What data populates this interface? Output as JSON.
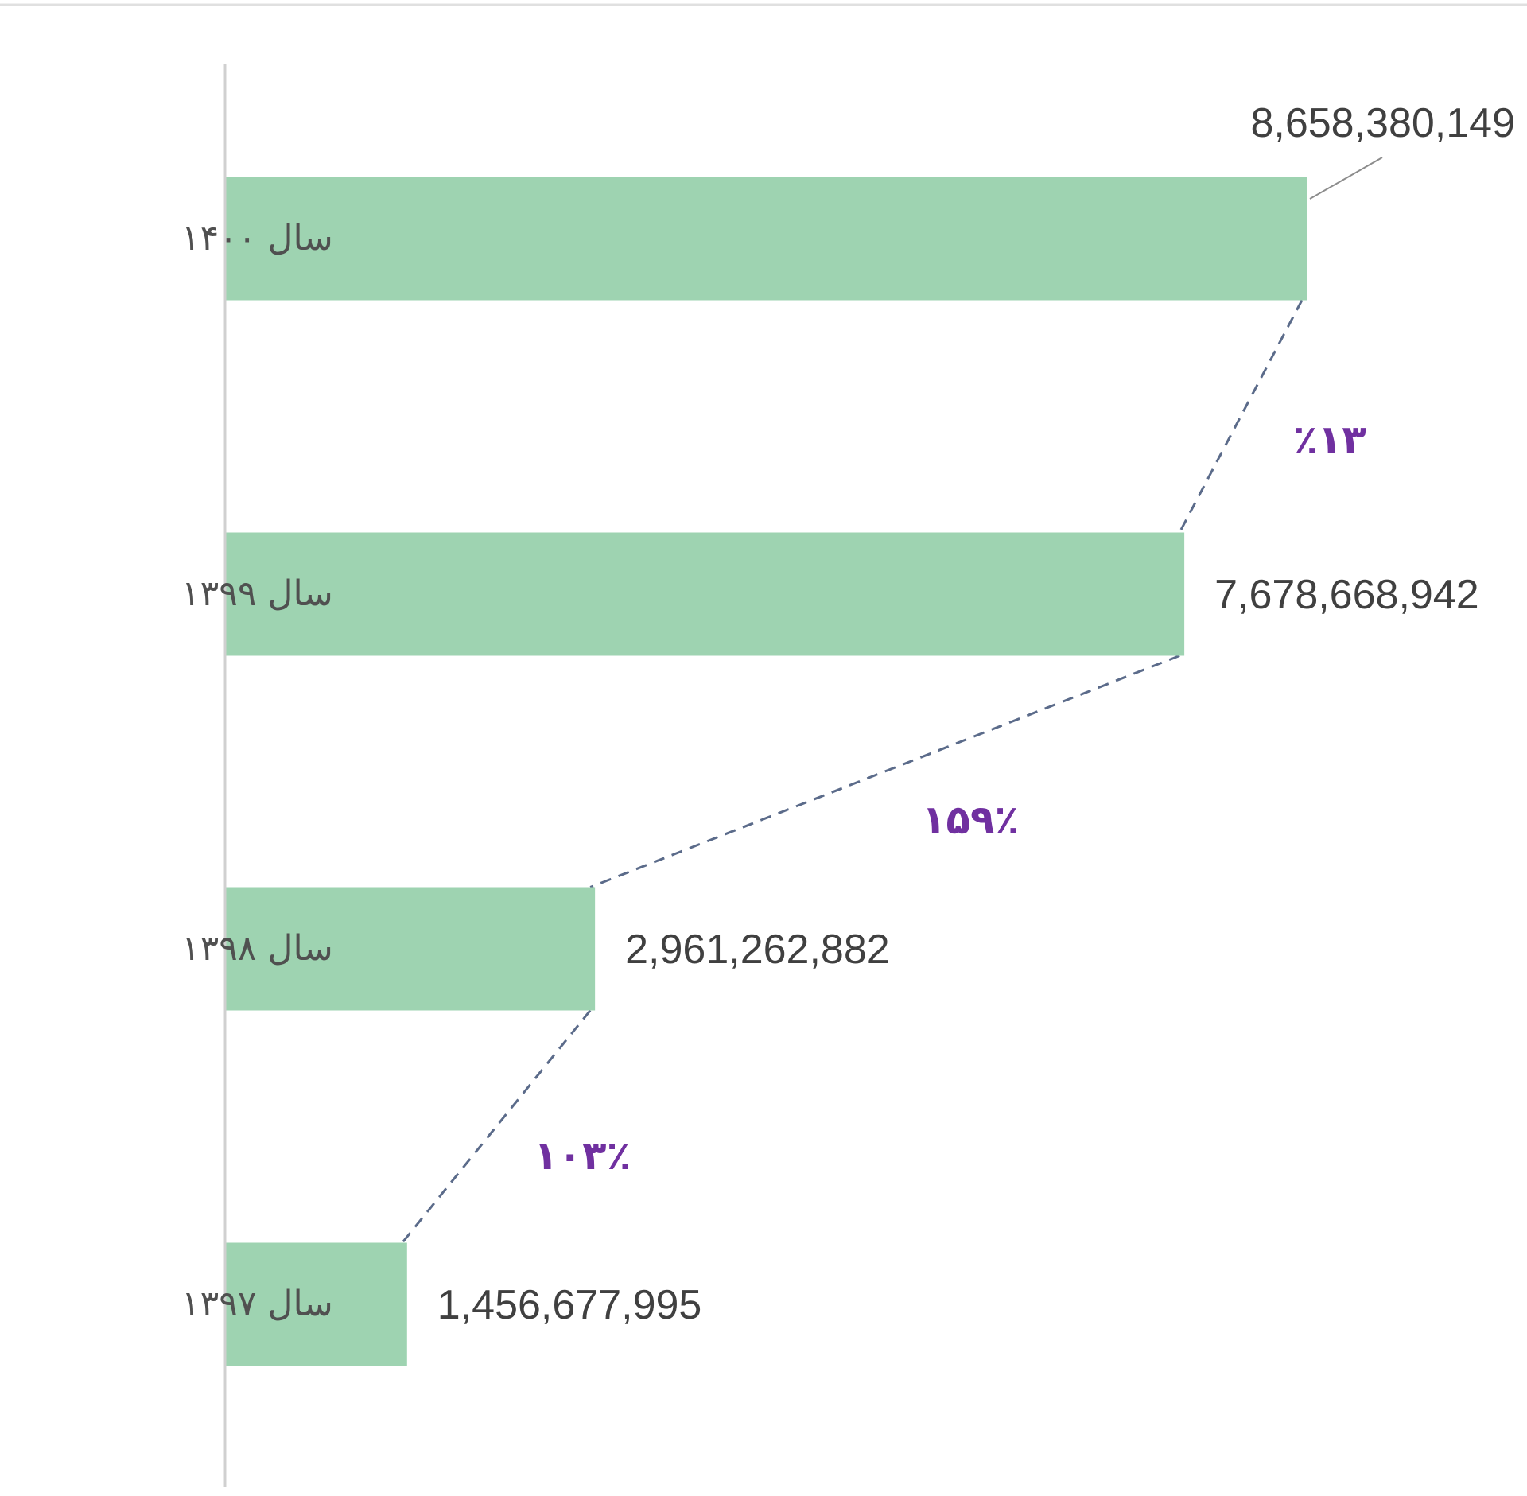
{
  "chart_data": {
    "type": "bar",
    "orientation": "horizontal",
    "categories": [
      "سال ۱۴۰۰",
      "سال ۱۳۹۹",
      "سال ۱۳۹۸",
      "سال ۱۳۹۷"
    ],
    "values": [
      8658380149,
      7678668942,
      2961262882,
      1456677995
    ],
    "value_labels": [
      "8,658,380,149",
      "7,678,668,942",
      "2,961,262,882",
      "1,456,677,995"
    ],
    "growth_labels": [
      "٪۱۳",
      "۱۵۹٪",
      "۱۰۳٪"
    ],
    "xlim": [
      0,
      11200000000
    ],
    "grid": false,
    "legend": "none"
  },
  "colors": {
    "bar": "#9ed3b1",
    "axis": "#d0d0d0",
    "connector": "#5b6b8a",
    "growth_text": "#7030a0",
    "value_text": "#404040",
    "category_text": "#505050",
    "leader_line": "#8c8c8c"
  }
}
